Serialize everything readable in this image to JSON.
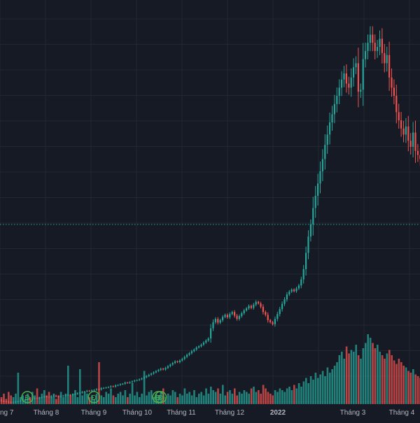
{
  "chart_data": {
    "type": "candlestick",
    "title": "",
    "xlabel": "",
    "ylabel": "",
    "x_tick_labels": [
      "ng 7",
      "Tháng 8",
      "Tháng 9",
      "Tháng 10",
      "Tháng 11",
      "Tháng 12",
      "2022",
      "Tháng 3",
      "Tháng 4"
    ],
    "grid": true,
    "colors": {
      "background": "#161a25",
      "grid": "#232734",
      "up": "#26a69a",
      "down": "#ef5350",
      "axis_text": "#b2b5be",
      "reference_line": "#26a69a",
      "event_marker": "#4caf50"
    },
    "event_marker_icon": "dividend-icon",
    "event_marker_label": "Đ",
    "close_series": [
      14.0,
      13.9,
      13.7,
      13.6,
      13.5,
      13.4,
      13.3,
      13.4,
      13.5,
      13.6,
      13.8,
      13.9,
      14.0,
      14.1,
      14.0,
      14.2,
      14.4,
      14.3,
      14.5,
      14.6,
      14.8,
      14.7,
      14.6,
      14.9,
      15.0,
      14.8,
      14.7,
      14.9,
      15.0,
      15.1,
      15.2,
      15.1,
      15.3,
      15.4,
      15.6,
      15.7,
      15.9,
      16.0,
      16.2,
      16.1,
      16.3,
      16.4,
      16.6,
      16.5,
      16.8,
      16.9,
      17.0,
      17.1,
      17.3,
      17.2,
      17.5,
      17.6,
      17.8,
      17.9,
      18.2,
      18.1,
      18.3,
      18.5,
      18.7,
      18.8,
      19.0,
      19.2,
      19.5,
      19.8,
      20.1,
      20.4,
      20.7,
      21.0,
      21.3,
      21.6,
      21.4,
      21.8,
      22.2,
      22.6,
      23.0,
      23.4,
      23.2,
      23.6,
      24.0,
      24.5,
      25.0,
      25.4,
      25.9,
      26.3,
      26.8,
      27.1,
      27.5,
      28.0,
      28.5,
      29.0,
      31.5,
      33.0,
      33.8,
      32.9,
      33.5,
      34.3,
      34.8,
      34.2,
      35.0,
      35.5,
      34.6,
      33.8,
      34.5,
      35.2,
      35.9,
      36.4,
      37.0,
      36.5,
      37.3,
      38.0,
      37.6,
      36.8,
      35.5,
      34.8,
      33.5,
      33.0,
      32.5,
      33.8,
      35.0,
      36.2,
      37.5,
      38.6,
      39.8,
      40.5,
      41.0,
      40.6,
      41.3,
      42.0,
      43.5,
      46.0,
      50.0,
      54.0,
      57.0,
      61.0,
      64.0,
      67.0,
      70.0,
      73.0,
      76.5,
      79.0,
      82.0,
      84.0,
      86.5,
      88.5,
      90.5,
      92.5,
      94.0,
      91.5,
      90.5,
      93.0,
      95.5,
      96.5,
      89.5,
      90.0,
      97.5,
      99.5,
      101.5,
      103.5,
      101.5,
      99.5,
      100.5,
      102.5,
      99.0,
      96.5,
      98.5,
      93.0,
      90.5,
      88.5,
      84.5,
      82.5,
      80.5,
      79.0,
      81.0,
      77.5,
      76.0,
      79.5,
      75.0,
      74.0,
      73.0,
      71.5
    ],
    "volume_series": [
      8,
      5,
      4,
      6,
      3,
      7,
      5,
      4,
      6,
      18,
      4,
      5,
      3,
      6,
      4,
      7,
      5,
      9,
      4,
      6,
      8,
      5,
      7,
      4,
      6,
      3,
      5,
      7,
      4,
      6,
      22,
      5,
      6,
      8,
      4,
      20,
      5,
      7,
      6,
      4,
      5,
      3,
      6,
      24,
      5,
      4,
      7,
      6,
      9,
      5,
      4,
      6,
      7,
      5,
      8,
      4,
      6,
      12,
      5,
      7,
      4,
      6,
      19,
      5,
      7,
      8,
      4,
      6,
      5,
      7,
      9,
      4,
      6,
      5,
      8,
      7,
      4,
      6,
      5,
      9,
      6,
      7,
      5,
      8,
      4,
      6,
      7,
      5,
      9,
      6,
      10,
      8,
      7,
      9,
      6,
      11,
      5,
      7,
      8,
      6,
      9,
      5,
      7,
      6,
      8,
      7,
      6,
      9,
      10,
      7,
      8,
      6,
      11,
      9,
      7,
      6,
      5,
      8,
      7,
      9,
      8,
      7,
      9,
      10,
      8,
      11,
      9,
      12,
      10,
      13,
      15,
      12,
      16,
      14,
      18,
      15,
      17,
      19,
      16,
      21,
      18,
      20,
      22,
      24,
      28,
      30,
      26,
      33,
      29,
      31,
      30,
      34,
      28,
      26,
      32,
      35,
      40,
      38,
      35,
      32,
      34,
      30,
      28,
      26,
      29,
      31,
      28,
      25,
      23,
      26,
      24,
      22,
      21,
      19,
      18,
      20,
      17,
      16,
      15,
      14
    ],
    "event_marker_bars": [
      10,
      38,
      65,
      66
    ]
  }
}
